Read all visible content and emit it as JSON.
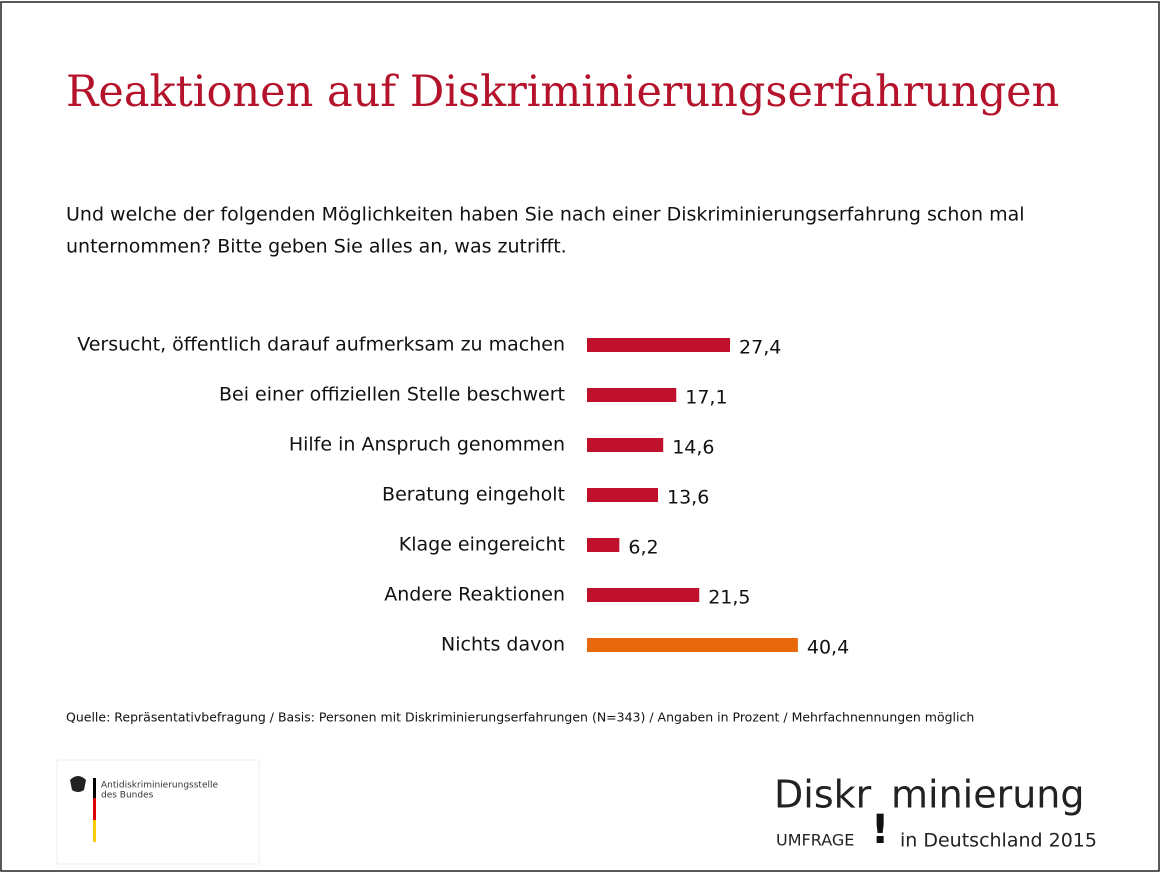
{
  "chart_data": {
    "type": "bar",
    "orientation": "horizontal",
    "title": "Reaktionen auf Diskriminierungserfahrungen",
    "subtitle": [
      "Und welche der folgenden Möglichkeiten haben Sie nach einer Diskriminierungserfahrung schon mal",
      "unternommen? Bitte geben Sie alles an, was zutrifft."
    ],
    "categories": [
      "Versucht, öffentlich darauf aufmerksam zu machen",
      "Bei einer offiziellen Stelle beschwert",
      "Hilfe in Anspruch genommen",
      "Beratung eingeholt",
      "Klage eingereicht",
      "Andere Reaktionen",
      "Nichts davon"
    ],
    "values": [
      27.4,
      17.1,
      14.6,
      13.6,
      6.2,
      21.5,
      40.4
    ],
    "value_labels": [
      "27,4",
      "17,1",
      "14,6",
      "13,6",
      "6,2",
      "21,5",
      "40,4"
    ],
    "colors": [
      "#c0112c",
      "#c0112c",
      "#c0112c",
      "#c0112c",
      "#c0112c",
      "#c0112c",
      "#e8690b"
    ],
    "source": "Quelle: Repräsentativbefragung / Basis: Personen mit Diskriminierungserfahrungen (N=343) / Angaben in Prozent / Mehrfachnennungen möglich"
  },
  "logos": {
    "left": [
      "Antidiskriminierungsstelle",
      "des Bundes"
    ],
    "right": {
      "word_start": "Diskr",
      "word_end": "minierung",
      "umfrage": "UMFRAGE",
      "mark": "!",
      "tail": "in Deutschland 2015"
    }
  }
}
